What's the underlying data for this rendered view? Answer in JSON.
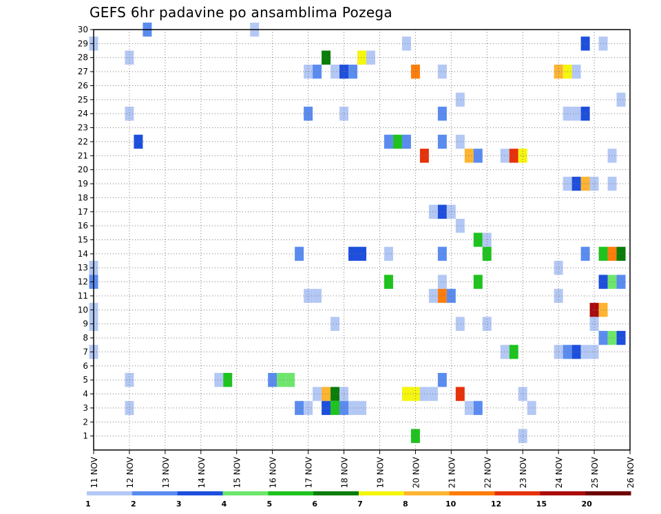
{
  "chart_data": {
    "type": "heatmap",
    "title": "GEFS 6hr padavine po ansamblima Pozega",
    "xlabel": "",
    "ylabel": "",
    "y_ticks": [
      "1",
      "2",
      "3",
      "4",
      "5",
      "6",
      "7",
      "8",
      "9",
      "10",
      "11",
      "12",
      "13",
      "14",
      "15",
      "16",
      "17",
      "18",
      "19",
      "20",
      "21",
      "22",
      "23",
      "24",
      "25",
      "26",
      "27",
      "28",
      "29",
      "30"
    ],
    "x_ticks": [
      "11 NOV",
      "12 NOV",
      "13 NOV",
      "14 NOV",
      "15 NOV",
      "16 NOV",
      "17 NOV",
      "18 NOV",
      "19 NOV",
      "20 NOV",
      "21 NOV",
      "22 NOV",
      "23 NOV",
      "24 NOV",
      "25 NOV",
      "26 NOV"
    ],
    "x_range_days": [
      11,
      26
    ],
    "y_range": [
      0,
      30
    ],
    "grid": "dotted",
    "legend_position": "bottom",
    "colorbar": {
      "labels": [
        "1",
        "2",
        "3",
        "4",
        "5",
        "6",
        "7",
        "8",
        "10",
        "12",
        "15",
        "20"
      ],
      "colors": [
        "#b4c8f5",
        "#5a8cf0",
        "#1e4fdc",
        "#6ee66e",
        "#1ec31e",
        "#0a7d0a",
        "#f5f50f",
        "#ffb432",
        "#ff7d0a",
        "#e6320a",
        "#aa0a0a",
        "#6e0000"
      ]
    },
    "units_note": "x in days of November (each cell = 6 hours), y = ensemble member, c = colorbar class index",
    "cells": [
      {
        "x": 12.5,
        "y": 30,
        "c": 1
      },
      {
        "x": 15.5,
        "y": 30,
        "c": 0
      },
      {
        "x": 11.0,
        "y": 29,
        "c": 0
      },
      {
        "x": 19.75,
        "y": 29,
        "c": 0
      },
      {
        "x": 24.75,
        "y": 29,
        "c": 2
      },
      {
        "x": 25.25,
        "y": 29,
        "c": 0
      },
      {
        "x": 12.0,
        "y": 28,
        "c": 0
      },
      {
        "x": 17.5,
        "y": 28,
        "c": 5
      },
      {
        "x": 18.5,
        "y": 28,
        "c": 6
      },
      {
        "x": 18.75,
        "y": 28,
        "c": 0
      },
      {
        "x": 17.0,
        "y": 27,
        "c": 0
      },
      {
        "x": 17.25,
        "y": 27,
        "c": 1
      },
      {
        "x": 17.75,
        "y": 27,
        "c": 0
      },
      {
        "x": 18.0,
        "y": 27,
        "c": 2
      },
      {
        "x": 18.25,
        "y": 27,
        "c": 1
      },
      {
        "x": 20.0,
        "y": 27,
        "c": 8
      },
      {
        "x": 20.75,
        "y": 27,
        "c": 0
      },
      {
        "x": 24.0,
        "y": 27,
        "c": 7
      },
      {
        "x": 24.25,
        "y": 27,
        "c": 6
      },
      {
        "x": 24.5,
        "y": 27,
        "c": 0
      },
      {
        "x": 21.25,
        "y": 25,
        "c": 0
      },
      {
        "x": 25.75,
        "y": 25,
        "c": 0
      },
      {
        "x": 12.0,
        "y": 24,
        "c": 0
      },
      {
        "x": 17.0,
        "y": 24,
        "c": 1
      },
      {
        "x": 18.0,
        "y": 24,
        "c": 0
      },
      {
        "x": 20.75,
        "y": 24,
        "c": 1
      },
      {
        "x": 24.25,
        "y": 24,
        "c": 0
      },
      {
        "x": 24.5,
        "y": 24,
        "c": 0
      },
      {
        "x": 24.75,
        "y": 24,
        "c": 2
      },
      {
        "x": 12.25,
        "y": 22,
        "c": 2
      },
      {
        "x": 19.25,
        "y": 22,
        "c": 1
      },
      {
        "x": 19.5,
        "y": 22,
        "c": 4
      },
      {
        "x": 19.75,
        "y": 22,
        "c": 1
      },
      {
        "x": 20.75,
        "y": 22,
        "c": 1
      },
      {
        "x": 21.25,
        "y": 22,
        "c": 0
      },
      {
        "x": 20.25,
        "y": 21,
        "c": 9
      },
      {
        "x": 21.5,
        "y": 21,
        "c": 7
      },
      {
        "x": 21.75,
        "y": 21,
        "c": 1
      },
      {
        "x": 22.5,
        "y": 21,
        "c": 0
      },
      {
        "x": 22.75,
        "y": 21,
        "c": 9
      },
      {
        "x": 23.0,
        "y": 21,
        "c": 6
      },
      {
        "x": 25.5,
        "y": 21,
        "c": 0
      },
      {
        "x": 24.25,
        "y": 19,
        "c": 0
      },
      {
        "x": 24.5,
        "y": 19,
        "c": 2
      },
      {
        "x": 24.75,
        "y": 19,
        "c": 7
      },
      {
        "x": 25.0,
        "y": 19,
        "c": 0
      },
      {
        "x": 25.5,
        "y": 19,
        "c": 0
      },
      {
        "x": 20.5,
        "y": 17,
        "c": 0
      },
      {
        "x": 20.75,
        "y": 17,
        "c": 2
      },
      {
        "x": 21.0,
        "y": 17,
        "c": 0
      },
      {
        "x": 21.25,
        "y": 16,
        "c": 0
      },
      {
        "x": 21.75,
        "y": 15,
        "c": 4
      },
      {
        "x": 22.0,
        "y": 15,
        "c": 0
      },
      {
        "x": 16.75,
        "y": 14,
        "c": 1
      },
      {
        "x": 18.25,
        "y": 14,
        "c": 2
      },
      {
        "x": 18.5,
        "y": 14,
        "c": 2
      },
      {
        "x": 19.25,
        "y": 14,
        "c": 0
      },
      {
        "x": 20.75,
        "y": 14,
        "c": 1
      },
      {
        "x": 22.0,
        "y": 14,
        "c": 4
      },
      {
        "x": 24.75,
        "y": 14,
        "c": 1
      },
      {
        "x": 25.25,
        "y": 14,
        "c": 4
      },
      {
        "x": 25.5,
        "y": 14,
        "c": 8
      },
      {
        "x": 25.75,
        "y": 14,
        "c": 5
      },
      {
        "x": 11.0,
        "y": 13,
        "c": 0
      },
      {
        "x": 24.0,
        "y": 13,
        "c": 0
      },
      {
        "x": 11.0,
        "y": 12,
        "c": 1
      },
      {
        "x": 19.25,
        "y": 12,
        "c": 4
      },
      {
        "x": 20.75,
        "y": 12,
        "c": 0
      },
      {
        "x": 21.75,
        "y": 12,
        "c": 4
      },
      {
        "x": 25.25,
        "y": 12,
        "c": 2
      },
      {
        "x": 25.5,
        "y": 12,
        "c": 3
      },
      {
        "x": 25.75,
        "y": 12,
        "c": 1
      },
      {
        "x": 17.0,
        "y": 11,
        "c": 0
      },
      {
        "x": 17.25,
        "y": 11,
        "c": 0
      },
      {
        "x": 20.5,
        "y": 11,
        "c": 0
      },
      {
        "x": 20.75,
        "y": 11,
        "c": 8
      },
      {
        "x": 21.0,
        "y": 11,
        "c": 1
      },
      {
        "x": 24.0,
        "y": 11,
        "c": 0
      },
      {
        "x": 11.0,
        "y": 10,
        "c": 0
      },
      {
        "x": 25.0,
        "y": 10,
        "c": 10
      },
      {
        "x": 25.25,
        "y": 10,
        "c": 7
      },
      {
        "x": 11.0,
        "y": 9,
        "c": 0
      },
      {
        "x": 17.75,
        "y": 9,
        "c": 0
      },
      {
        "x": 21.25,
        "y": 9,
        "c": 0
      },
      {
        "x": 22.0,
        "y": 9,
        "c": 0
      },
      {
        "x": 25.0,
        "y": 9,
        "c": 0
      },
      {
        "x": 25.25,
        "y": 8,
        "c": 1
      },
      {
        "x": 25.5,
        "y": 8,
        "c": 3
      },
      {
        "x": 25.75,
        "y": 8,
        "c": 2
      },
      {
        "x": 11.0,
        "y": 7,
        "c": 0
      },
      {
        "x": 22.5,
        "y": 7,
        "c": 0
      },
      {
        "x": 22.75,
        "y": 7,
        "c": 4
      },
      {
        "x": 24.0,
        "y": 7,
        "c": 0
      },
      {
        "x": 24.25,
        "y": 7,
        "c": 1
      },
      {
        "x": 24.5,
        "y": 7,
        "c": 2
      },
      {
        "x": 24.75,
        "y": 7,
        "c": 0
      },
      {
        "x": 25.0,
        "y": 7,
        "c": 0
      },
      {
        "x": 12.0,
        "y": 5,
        "c": 0
      },
      {
        "x": 14.5,
        "y": 5,
        "c": 0
      },
      {
        "x": 14.75,
        "y": 5,
        "c": 4
      },
      {
        "x": 16.0,
        "y": 5,
        "c": 1
      },
      {
        "x": 16.25,
        "y": 5,
        "c": 3
      },
      {
        "x": 16.5,
        "y": 5,
        "c": 3
      },
      {
        "x": 20.75,
        "y": 5,
        "c": 1
      },
      {
        "x": 17.25,
        "y": 4,
        "c": 0
      },
      {
        "x": 17.5,
        "y": 4,
        "c": 7
      },
      {
        "x": 17.75,
        "y": 4,
        "c": 5
      },
      {
        "x": 18.0,
        "y": 4,
        "c": 0
      },
      {
        "x": 19.75,
        "y": 4,
        "c": 6
      },
      {
        "x": 20.0,
        "y": 4,
        "c": 6
      },
      {
        "x": 20.25,
        "y": 4,
        "c": 0
      },
      {
        "x": 20.5,
        "y": 4,
        "c": 0
      },
      {
        "x": 21.25,
        "y": 4,
        "c": 9
      },
      {
        "x": 23.0,
        "y": 4,
        "c": 0
      },
      {
        "x": 12.0,
        "y": 3,
        "c": 0
      },
      {
        "x": 16.75,
        "y": 3,
        "c": 1
      },
      {
        "x": 17.0,
        "y": 3,
        "c": 0
      },
      {
        "x": 17.5,
        "y": 3,
        "c": 2
      },
      {
        "x": 17.75,
        "y": 3,
        "c": 4
      },
      {
        "x": 18.0,
        "y": 3,
        "c": 1
      },
      {
        "x": 18.25,
        "y": 3,
        "c": 0
      },
      {
        "x": 18.5,
        "y": 3,
        "c": 0
      },
      {
        "x": 21.5,
        "y": 3,
        "c": 0
      },
      {
        "x": 21.75,
        "y": 3,
        "c": 1
      },
      {
        "x": 23.25,
        "y": 3,
        "c": 0
      },
      {
        "x": 20.0,
        "y": 1,
        "c": 4
      },
      {
        "x": 23.0,
        "y": 1,
        "c": 0
      }
    ]
  }
}
